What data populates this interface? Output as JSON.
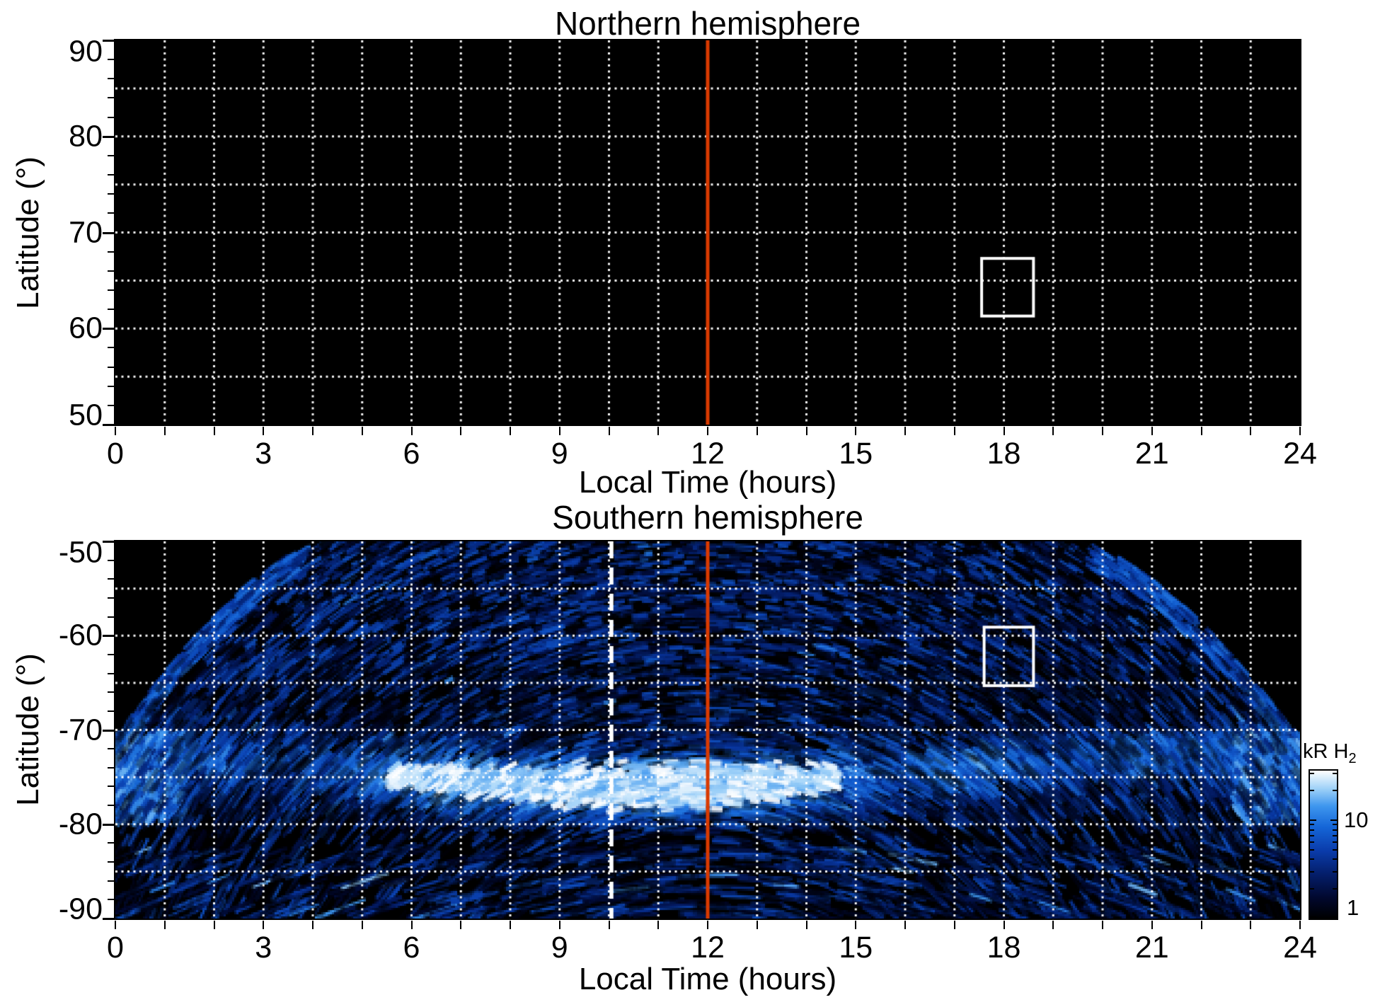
{
  "figure": {
    "background": "#ffffff",
    "text_color": "#000000"
  },
  "colors": {
    "panel_background": "#000000",
    "grid_line": "#ffffff",
    "red_meridian_line": "#d93a00",
    "dashed_meridian_line": "#ffffff",
    "highlight_box": "#ffffff"
  },
  "chart_data": [
    {
      "id": "north",
      "type": "heatmap",
      "title": "Northern hemisphere",
      "xlabel": "Local Time (hours)",
      "ylabel": "Latitude (°)",
      "xlim": [
        0,
        24
      ],
      "ylim": [
        50,
        90
      ],
      "x_tick_labels": [
        "0",
        "3",
        "6",
        "9",
        "12",
        "15",
        "18",
        "21",
        "24"
      ],
      "x_tick_values": [
        0,
        3,
        6,
        9,
        12,
        15,
        18,
        21,
        24
      ],
      "x_minor_step_hours": 1,
      "y_tick_labels": [
        "90",
        "80",
        "70",
        "60",
        "50"
      ],
      "y_tick_values": [
        90,
        80,
        70,
        60,
        50
      ],
      "y_minor_step_degrees": 2,
      "grid": {
        "x_step_hours": 1,
        "y_step_degrees": 5,
        "style": "white dotted"
      },
      "data_summary": "No H2 emission detected in this period: entire northern panel is black (below ~1 kR).",
      "annotations": {
        "red_line_hour": 12,
        "white_box": {
          "hour_min": 17.55,
          "hour_max": 18.6,
          "lat_min": 61.3,
          "lat_max": 67.3
        }
      }
    },
    {
      "id": "south",
      "type": "heatmap",
      "title": "Southern hemisphere",
      "xlabel": "Local Time (hours)",
      "ylabel": "Latitude (°)",
      "xlim": [
        0,
        24
      ],
      "ylim": [
        -90,
        -50
      ],
      "x_tick_labels": [
        "0",
        "3",
        "6",
        "9",
        "12",
        "15",
        "18",
        "21",
        "24"
      ],
      "x_tick_values": [
        0,
        3,
        6,
        9,
        12,
        15,
        18,
        21,
        24
      ],
      "x_minor_step_hours": 1,
      "y_tick_labels": [
        "-50",
        "-60",
        "-70",
        "-80",
        "-90"
      ],
      "y_tick_values": [
        -50,
        -60,
        -70,
        -80,
        -90
      ],
      "y_minor_step_degrees": 2,
      "grid": {
        "x_step_hours": 1,
        "y_step_degrees": 5,
        "style": "white dotted"
      },
      "data_summary": "Streaky blue H2 emission map of the southern auroral region. A bright auroral oval band sits near -73 to -77 latitude, brightest (saturated white, >30 kR) between ~9 and ~13 h local time; fainter patchy emission fills the coverage region down to -90. No data (black) above a curved coverage boundary in the top-left and top-right corners.",
      "coverage_boundary": {
        "description": "data exist only equatorward-limited: boundary rises from lat -71 at 0 h to -50 at ~4.3 h, full coverage 4.3-19.4 h, then falls from -50 at ~19.4 h to -71 at 24 h"
      },
      "band": {
        "hours": [
          0,
          2,
          4,
          6,
          8,
          10,
          12,
          14,
          16,
          18,
          20,
          22,
          24
        ],
        "center_lat": [
          -75,
          -74.8,
          -74.6,
          -75.1,
          -75.3,
          -76.0,
          -75.9,
          -74.3,
          -73.6,
          -73.0,
          -72.8,
          -72.9,
          -74.5
        ],
        "peak_kR": [
          9,
          5,
          6,
          18,
          26,
          30,
          30,
          12,
          7,
          11,
          5,
          8,
          9
        ]
      },
      "annotations": {
        "red_line_hour": 12,
        "white_dashed_line_hour": 10.05,
        "white_box": {
          "hour_min": 17.6,
          "hour_max": 18.6,
          "lat_min": -65.3,
          "lat_max": -59.1
        }
      }
    }
  ],
  "colorbar": {
    "label": "kR H",
    "label_sub": "2",
    "scale": "log",
    "value_min": 1,
    "value_max": 32,
    "tick_labels": [
      "10",
      "1"
    ],
    "tick_values": [
      10,
      1
    ],
    "minor_tick_values": [
      2,
      3,
      4,
      5,
      6,
      7,
      8,
      9,
      20,
      30
    ],
    "gradient_stops": [
      {
        "t": 0.0,
        "c": "#000000"
      },
      {
        "t": 0.14,
        "c": "#01082e"
      },
      {
        "t": 0.3,
        "c": "#041e6a"
      },
      {
        "t": 0.46,
        "c": "#0a3cab"
      },
      {
        "t": 0.62,
        "c": "#1566d8"
      },
      {
        "t": 0.76,
        "c": "#3e96ee"
      },
      {
        "t": 0.88,
        "c": "#a0d2f8"
      },
      {
        "t": 1.0,
        "c": "#ffffff"
      }
    ]
  }
}
